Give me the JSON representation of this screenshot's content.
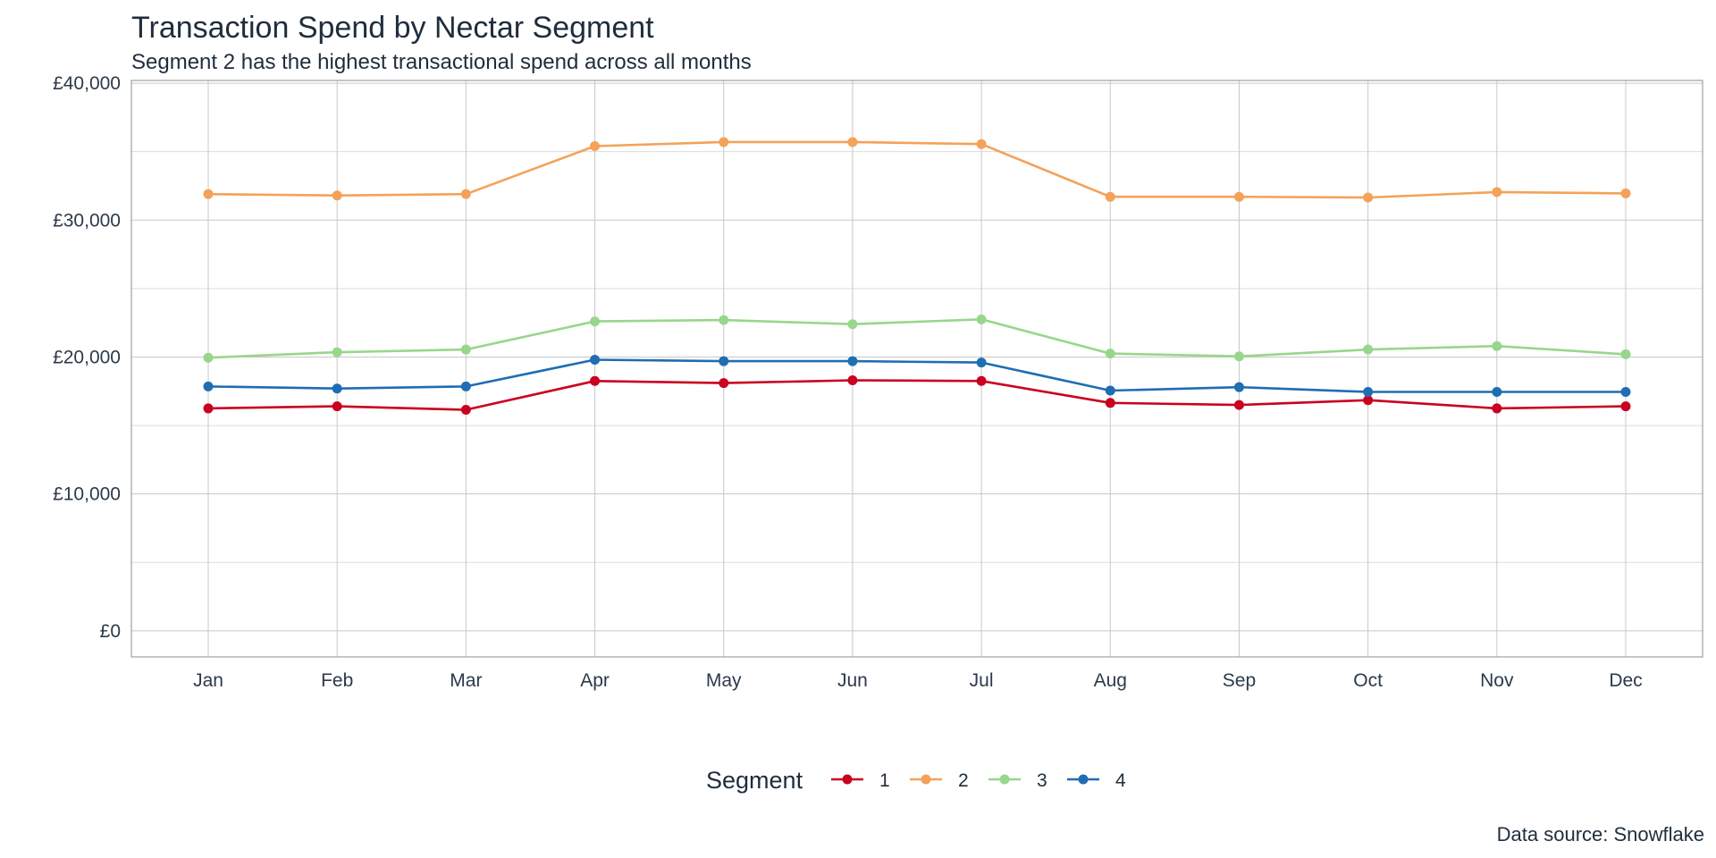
{
  "chart_data": {
    "type": "line",
    "title": "Transaction Spend by Nectar Segment",
    "subtitle": "Segment 2 has the highest transactional spend across all months",
    "caption": "Data source: Snowflake",
    "xlabel": "",
    "ylabel": "",
    "categories": [
      "Jan",
      "Feb",
      "Mar",
      "Apr",
      "May",
      "Jun",
      "Jul",
      "Aug",
      "Sep",
      "Oct",
      "Nov",
      "Dec"
    ],
    "ylim": [
      -1900,
      40200
    ],
    "y_ticks": [
      0,
      10000,
      20000,
      30000,
      40000
    ],
    "y_tick_labels": [
      "£0",
      "£10,000",
      "£20,000",
      "£30,000",
      "£40,000"
    ],
    "y_minor_ticks": [
      5000,
      15000,
      25000,
      35000
    ],
    "grid": true,
    "legend": {
      "title": "Segment",
      "position": "bottom"
    },
    "series": [
      {
        "name": "1",
        "color": "#ca0020",
        "values": [
          16250,
          16400,
          16150,
          18250,
          18100,
          18300,
          18250,
          16650,
          16500,
          16850,
          16250,
          16400
        ]
      },
      {
        "name": "2",
        "color": "#f4a259",
        "values": [
          31900,
          31800,
          31900,
          35400,
          35700,
          35700,
          35550,
          31700,
          31700,
          31650,
          32050,
          31950
        ]
      },
      {
        "name": "3",
        "color": "#98d68c",
        "values": [
          19950,
          20350,
          20550,
          22600,
          22700,
          22400,
          22750,
          20250,
          20050,
          20550,
          20800,
          20200
        ]
      },
      {
        "name": "4",
        "color": "#1f6db3",
        "values": [
          17850,
          17700,
          17850,
          19800,
          19700,
          19700,
          19600,
          17550,
          17800,
          17450,
          17450,
          17450
        ]
      }
    ]
  }
}
